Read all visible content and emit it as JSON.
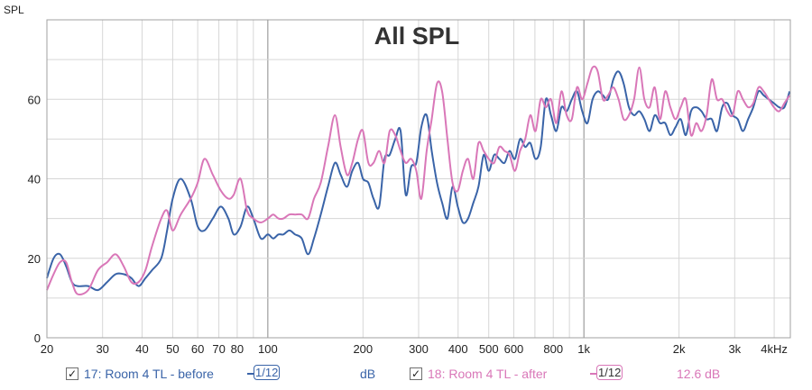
{
  "chart_data": {
    "type": "line",
    "title": "All SPL",
    "ylabel": "SPL",
    "xscale": "log",
    "xlim": [
      20,
      4500
    ],
    "ylim": [
      0,
      80
    ],
    "grid": true,
    "y_ticks": [
      0,
      20,
      40,
      60
    ],
    "x_ticks": [
      {
        "v": 20,
        "label": "20"
      },
      {
        "v": 30,
        "label": "30"
      },
      {
        "v": 40,
        "label": "40"
      },
      {
        "v": 50,
        "label": "50"
      },
      {
        "v": 60,
        "label": "60"
      },
      {
        "v": 70,
        "label": "70"
      },
      {
        "v": 80,
        "label": "80"
      },
      {
        "v": 100,
        "label": "100"
      },
      {
        "v": 200,
        "label": "200"
      },
      {
        "v": 300,
        "label": "300"
      },
      {
        "v": 400,
        "label": "400"
      },
      {
        "v": 500,
        "label": "500"
      },
      {
        "v": 600,
        "label": "600"
      },
      {
        "v": 800,
        "label": "800"
      },
      {
        "v": 1000,
        "label": "1k"
      },
      {
        "v": 2000,
        "label": "2k"
      },
      {
        "v": 3000,
        "label": "3k"
      },
      {
        "v": 4000,
        "label": "4kHz"
      }
    ],
    "series": [
      {
        "name": "17: Room 4 TL - before",
        "color": "#3a64a8",
        "x": [
          20,
          21,
          22,
          23,
          24,
          25,
          27,
          29,
          31,
          33,
          35,
          37,
          39,
          41,
          43,
          46,
          48,
          50,
          53,
          57,
          60,
          63,
          67,
          71,
          75,
          78,
          82,
          86,
          90,
          95,
          100,
          104,
          108,
          112,
          117,
          122,
          128,
          134,
          140,
          147,
          155,
          163,
          170,
          178,
          185,
          193,
          200,
          208,
          216,
          225,
          234,
          243,
          253,
          263,
          273,
          284,
          295,
          306,
          318,
          330,
          343,
          356,
          370,
          384,
          399,
          414,
          430,
          447,
          464,
          482,
          500,
          520,
          540,
          561,
          582,
          605,
          628,
          652,
          677,
          703,
          730,
          758,
          787,
          818,
          849,
          882,
          916,
          951,
          988,
          1026,
          1065,
          1106,
          1149,
          1193,
          1239,
          1287,
          1336,
          1388,
          1441,
          1497,
          1554,
          1614,
          1676,
          1741,
          1808,
          1877,
          1950,
          2025,
          2102,
          2183,
          2267,
          2355,
          2445,
          2539,
          2637,
          2739,
          2844,
          2954,
          3067,
          3185,
          3308,
          3435,
          3567,
          3705,
          3847,
          3995,
          4149,
          4309,
          4475
        ],
        "y": [
          15,
          20,
          21,
          18,
          14,
          13,
          13,
          12,
          14,
          16,
          16,
          15,
          13,
          15,
          17,
          20,
          27,
          35,
          40,
          35,
          28,
          27,
          30,
          33,
          30,
          26,
          28,
          33,
          30,
          25,
          26,
          25,
          26,
          26,
          27,
          26,
          25,
          21,
          25,
          31,
          38,
          44,
          41,
          38,
          42,
          44,
          40,
          39,
          35,
          33,
          45,
          46,
          50,
          52,
          36,
          43,
          44,
          53,
          56,
          47,
          39,
          34,
          30,
          38,
          33,
          29,
          30,
          34,
          38,
          46,
          42,
          46,
          45,
          44,
          47,
          45,
          50,
          48,
          49,
          45,
          48,
          60,
          56,
          52,
          58,
          57,
          60,
          62,
          57,
          54,
          60,
          62,
          61,
          60,
          65,
          67,
          64,
          58,
          56,
          57,
          55,
          52,
          56,
          54,
          54,
          51,
          53,
          55,
          51,
          57,
          58,
          57,
          55,
          55,
          52,
          58,
          59,
          56,
          55,
          52,
          55,
          58,
          62,
          61,
          60,
          59,
          58,
          58,
          62
        ]
      },
      {
        "name": "18: Room 4 TL - after",
        "color": "#d977b8",
        "x": [
          20,
          21,
          22,
          23,
          24,
          25,
          27,
          29,
          31,
          33,
          35,
          37,
          39,
          41,
          43,
          46,
          48,
          50,
          53,
          57,
          60,
          63,
          67,
          71,
          75,
          78,
          82,
          86,
          90,
          95,
          100,
          104,
          108,
          112,
          117,
          122,
          128,
          134,
          140,
          147,
          155,
          163,
          170,
          178,
          185,
          193,
          200,
          208,
          216,
          225,
          234,
          243,
          253,
          263,
          273,
          284,
          295,
          306,
          318,
          330,
          343,
          356,
          370,
          384,
          399,
          414,
          430,
          447,
          464,
          482,
          500,
          520,
          540,
          561,
          582,
          605,
          628,
          652,
          677,
          703,
          730,
          758,
          787,
          818,
          849,
          882,
          916,
          951,
          988,
          1026,
          1065,
          1106,
          1149,
          1193,
          1239,
          1287,
          1336,
          1388,
          1441,
          1497,
          1554,
          1614,
          1676,
          1741,
          1808,
          1877,
          1950,
          2025,
          2102,
          2183,
          2267,
          2355,
          2445,
          2539,
          2637,
          2739,
          2844,
          2954,
          3067,
          3185,
          3308,
          3435,
          3567,
          3705,
          3847,
          3995,
          4149,
          4309,
          4475
        ],
        "y": [
          12,
          16,
          19,
          19,
          14,
          11,
          12,
          17,
          19,
          21,
          18,
          14,
          14,
          17,
          23,
          30,
          32,
          27,
          31,
          35,
          39,
          45,
          41,
          37,
          35,
          36,
          40,
          32,
          30,
          29,
          30,
          31,
          30,
          30,
          31,
          31,
          31,
          30,
          35,
          39,
          48,
          56,
          48,
          41,
          44,
          50,
          52,
          44,
          44,
          47,
          44,
          52,
          51,
          47,
          44,
          45,
          42,
          35,
          47,
          55,
          64,
          62,
          50,
          39,
          37,
          42,
          45,
          40,
          49,
          47,
          45,
          44,
          48,
          47,
          46,
          42,
          47,
          50,
          56,
          52,
          60,
          58,
          60,
          54,
          62,
          56,
          55,
          63,
          60,
          64,
          68,
          67,
          60,
          61,
          63,
          60,
          55,
          56,
          60,
          68,
          60,
          58,
          63,
          55,
          62,
          58,
          55,
          58,
          60,
          51,
          54,
          52,
          56,
          65,
          60,
          60,
          57,
          56,
          62,
          60,
          58,
          59,
          63,
          62,
          60,
          58,
          57,
          59,
          61
        ]
      }
    ]
  },
  "legend": {
    "entries": [
      {
        "checked": "✓",
        "label": "17: Room 4 TL - before",
        "smoothing": "1/12",
        "offset": "dB"
      },
      {
        "checked": "✓",
        "label": "18: Room 4 TL - after",
        "smoothing": "1/12",
        "offset": "12.6 dB"
      }
    ]
  }
}
